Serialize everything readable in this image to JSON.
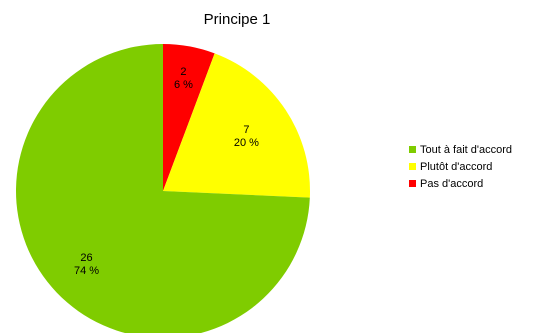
{
  "chart_data": {
    "type": "pie",
    "title": "Principe 1",
    "slices": [
      {
        "label": "Pas d'accord",
        "value": 2,
        "percent_label": "6 %",
        "color": "#ff0000"
      },
      {
        "label": "Plutôt d'accord",
        "value": 7,
        "percent_label": "20 %",
        "color": "#ffff00"
      },
      {
        "label": "Tout à fait d'accord",
        "value": 26,
        "percent_label": "74 %",
        "color": "#7fcc00"
      }
    ],
    "legend": {
      "placement": "right",
      "entries": [
        {
          "label": "Tout à fait d'accord",
          "color": "#7fcc00"
        },
        {
          "label": "Plutôt d'accord",
          "color": "#ffff00"
        },
        {
          "label": "Pas d'accord",
          "color": "#ff0000"
        }
      ]
    }
  }
}
